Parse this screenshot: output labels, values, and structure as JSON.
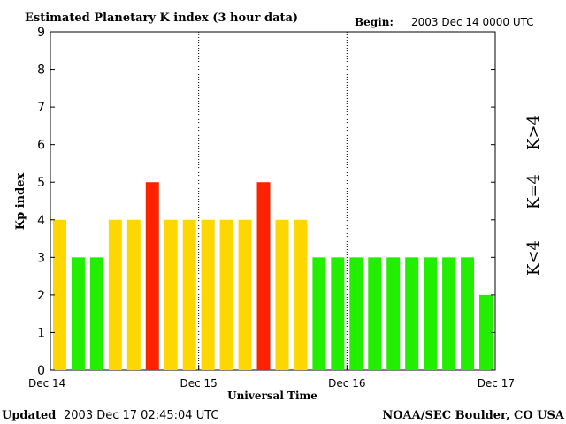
{
  "header": {
    "title": "Estimated Planetary K index (3 hour data)",
    "begin_label": "Begin:",
    "begin_value": "2003 Dec 14 0000 UTC"
  },
  "footer": {
    "updated_label": "Updated",
    "updated_value": "2003 Dec 17 02:45:04 UTC",
    "source": "NOAA/SEC Boulder, CO USA"
  },
  "legend": {
    "low": "K<4",
    "mid": "K=4",
    "high": "K>4"
  },
  "colors": {
    "low": "#22ee00",
    "mid": "#ffd700",
    "high": "#ff2200",
    "axis": "#000000"
  },
  "chart_data": {
    "type": "bar",
    "title": "Estimated Planetary K index (3 hour data)",
    "xlabel": "Universal Time",
    "ylabel": "Kp index",
    "ylim": [
      0,
      9
    ],
    "yticks": [
      "0",
      "1",
      "2",
      "3",
      "4",
      "5",
      "6",
      "7",
      "8",
      "9"
    ],
    "xtick_labels": [
      "Dec 14",
      "Dec 15",
      "Dec 16",
      "Dec 17"
    ],
    "values": [
      4,
      3,
      3,
      4,
      4,
      5,
      4,
      4,
      4,
      4,
      4,
      5,
      4,
      4,
      3,
      3,
      3,
      3,
      3,
      3,
      3,
      3,
      3,
      2
    ],
    "interval_hours": 3,
    "day_separators": "dotted"
  }
}
